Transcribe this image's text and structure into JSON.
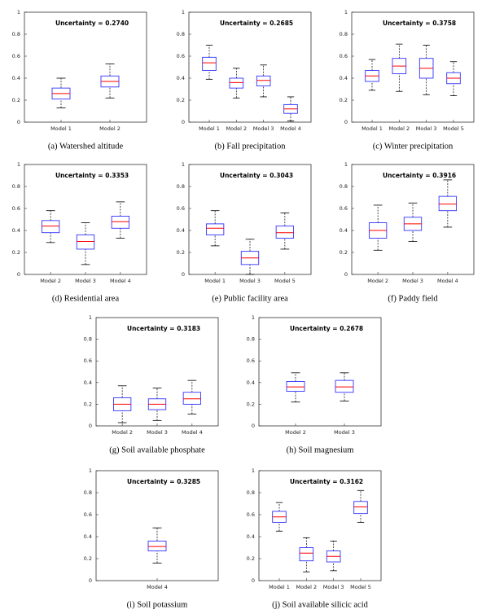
{
  "chart_data": [
    {
      "type": "box",
      "annotation": "Uncertainty = 0.2740",
      "caption": "(a) Watershed altitude",
      "categories": [
        "Model 1",
        "Model 2"
      ],
      "box_color": "#3333ff",
      "median_color": "#ff0000",
      "ylim": [
        0,
        1
      ],
      "yticks": [
        0,
        0.2,
        0.4,
        0.6,
        0.8,
        1
      ],
      "boxes": [
        {
          "low": 0.13,
          "q1": 0.21,
          "median": 0.26,
          "q3": 0.31,
          "high": 0.4
        },
        {
          "low": 0.22,
          "q1": 0.32,
          "median": 0.37,
          "q3": 0.42,
          "high": 0.53
        }
      ]
    },
    {
      "type": "box",
      "annotation": "Uncertainty = 0.2685",
      "caption": "(b) Fall precipitation",
      "categories": [
        "Model 1",
        "Model 2",
        "Model 3",
        "Model 4"
      ],
      "box_color": "#3333ff",
      "median_color": "#ff0000",
      "ylim": [
        0,
        1
      ],
      "yticks": [
        0,
        0.2,
        0.4,
        0.6,
        0.8,
        1
      ],
      "boxes": [
        {
          "low": 0.39,
          "q1": 0.47,
          "median": 0.54,
          "q3": 0.59,
          "high": 0.7
        },
        {
          "low": 0.22,
          "q1": 0.31,
          "median": 0.36,
          "q3": 0.4,
          "high": 0.49
        },
        {
          "low": 0.23,
          "q1": 0.33,
          "median": 0.38,
          "q3": 0.42,
          "high": 0.52
        },
        {
          "low": 0.01,
          "q1": 0.08,
          "median": 0.12,
          "q3": 0.16,
          "high": 0.23
        }
      ]
    },
    {
      "type": "box",
      "annotation": "Uncertainty = 0.3758",
      "caption": "(c) Winter precipitation",
      "categories": [
        "Model 1",
        "Model 2",
        "Model 3",
        "Model 5"
      ],
      "box_color": "#3333ff",
      "median_color": "#ff0000",
      "ylim": [
        0,
        1
      ],
      "yticks": [
        0,
        0.2,
        0.4,
        0.6,
        0.8,
        1
      ],
      "boxes": [
        {
          "low": 0.29,
          "q1": 0.37,
          "median": 0.42,
          "q3": 0.47,
          "high": 0.57
        },
        {
          "low": 0.28,
          "q1": 0.44,
          "median": 0.51,
          "q3": 0.58,
          "high": 0.71
        },
        {
          "low": 0.25,
          "q1": 0.4,
          "median": 0.49,
          "q3": 0.58,
          "high": 0.7
        },
        {
          "low": 0.24,
          "q1": 0.35,
          "median": 0.4,
          "q3": 0.45,
          "high": 0.55
        }
      ]
    },
    {
      "type": "box",
      "annotation": "Uncertainty = 0.3353",
      "caption": "(d) Residential area",
      "categories": [
        "Model 2",
        "Model 3",
        "Model 4"
      ],
      "box_color": "#3333ff",
      "median_color": "#ff0000",
      "ylim": [
        0,
        1
      ],
      "yticks": [
        0,
        0.2,
        0.4,
        0.6,
        0.8,
        1
      ],
      "boxes": [
        {
          "low": 0.29,
          "q1": 0.38,
          "median": 0.44,
          "q3": 0.49,
          "high": 0.58
        },
        {
          "low": 0.09,
          "q1": 0.23,
          "median": 0.3,
          "q3": 0.36,
          "high": 0.47
        },
        {
          "low": 0.33,
          "q1": 0.42,
          "median": 0.48,
          "q3": 0.53,
          "high": 0.66
        }
      ]
    },
    {
      "type": "box",
      "annotation": "Uncertainty = 0.3043",
      "caption": "(e) Public facility area",
      "categories": [
        "Model 1",
        "Model 3",
        "Model 5"
      ],
      "box_color": "#3333ff",
      "median_color": "#ff0000",
      "ylim": [
        0,
        1
      ],
      "yticks": [
        0,
        0.2,
        0.4,
        0.6,
        0.8,
        1
      ],
      "boxes": [
        {
          "low": 0.26,
          "q1": 0.36,
          "median": 0.42,
          "q3": 0.46,
          "high": 0.58
        },
        {
          "low": 0.0,
          "q1": 0.09,
          "median": 0.15,
          "q3": 0.21,
          "high": 0.32
        },
        {
          "low": 0.23,
          "q1": 0.33,
          "median": 0.38,
          "q3": 0.44,
          "high": 0.56
        }
      ]
    },
    {
      "type": "box",
      "annotation": "Uncertainty = 0.3916",
      "caption": "(f) Paddy field",
      "categories": [
        "Model 2",
        "Model 3",
        "Model 4"
      ],
      "box_color": "#3333ff",
      "median_color": "#ff0000",
      "ylim": [
        0,
        1
      ],
      "yticks": [
        0,
        0.2,
        0.4,
        0.6,
        0.8,
        1
      ],
      "boxes": [
        {
          "low": 0.22,
          "q1": 0.33,
          "median": 0.4,
          "q3": 0.47,
          "high": 0.63
        },
        {
          "low": 0.3,
          "q1": 0.4,
          "median": 0.46,
          "q3": 0.52,
          "high": 0.65
        },
        {
          "low": 0.43,
          "q1": 0.58,
          "median": 0.64,
          "q3": 0.71,
          "high": 0.86
        }
      ]
    },
    {
      "type": "box",
      "annotation": "Uncertainty = 0.3183",
      "caption": "(g) Soil available phosphate",
      "categories": [
        "Model 2",
        "Model 3",
        "Model 4"
      ],
      "box_color": "#3333ff",
      "median_color": "#ff0000",
      "ylim": [
        0,
        1
      ],
      "yticks": [
        0,
        0.2,
        0.4,
        0.6,
        0.8,
        1
      ],
      "boxes": [
        {
          "low": 0.03,
          "q1": 0.14,
          "median": 0.2,
          "q3": 0.26,
          "high": 0.37
        },
        {
          "low": 0.05,
          "q1": 0.15,
          "median": 0.2,
          "q3": 0.25,
          "high": 0.35
        },
        {
          "low": 0.11,
          "q1": 0.2,
          "median": 0.25,
          "q3": 0.31,
          "high": 0.42
        }
      ]
    },
    {
      "type": "box",
      "annotation": "Uncertainty = 0.2678",
      "caption": "(h) Soil magnesium",
      "categories": [
        "Model 2",
        "Model 3"
      ],
      "box_color": "#3333ff",
      "median_color": "#ff0000",
      "ylim": [
        0,
        1
      ],
      "yticks": [
        0,
        0.2,
        0.4,
        0.6,
        0.8,
        1
      ],
      "boxes": [
        {
          "low": 0.22,
          "q1": 0.32,
          "median": 0.36,
          "q3": 0.41,
          "high": 0.49
        },
        {
          "low": 0.23,
          "q1": 0.31,
          "median": 0.36,
          "q3": 0.42,
          "high": 0.49
        }
      ]
    },
    {
      "type": "box",
      "annotation": "Uncertainty = 0.3285",
      "caption": "(i) Soil potassium",
      "categories": [
        "Model 4"
      ],
      "box_color": "#3333ff",
      "median_color": "#ff0000",
      "ylim": [
        0,
        1
      ],
      "yticks": [
        0,
        0.2,
        0.4,
        0.6,
        0.8,
        1
      ],
      "boxes": [
        {
          "low": 0.16,
          "q1": 0.27,
          "median": 0.31,
          "q3": 0.36,
          "high": 0.48
        }
      ]
    },
    {
      "type": "box",
      "annotation": "Uncertainty = 0.3162",
      "caption": "(j) Soil available silicic acid",
      "categories": [
        "Model 1",
        "Model 2",
        "Model 3",
        "Model 5"
      ],
      "box_color": "#3333ff",
      "median_color": "#ff0000",
      "ylim": [
        0,
        1
      ],
      "yticks": [
        0,
        0.2,
        0.4,
        0.6,
        0.8,
        1
      ],
      "boxes": [
        {
          "low": 0.45,
          "q1": 0.53,
          "median": 0.58,
          "q3": 0.63,
          "high": 0.71
        },
        {
          "low": 0.08,
          "q1": 0.18,
          "median": 0.25,
          "q3": 0.3,
          "high": 0.39
        },
        {
          "low": 0.09,
          "q1": 0.17,
          "median": 0.22,
          "q3": 0.27,
          "high": 0.36
        },
        {
          "low": 0.53,
          "q1": 0.61,
          "median": 0.67,
          "q3": 0.72,
          "high": 0.82
        }
      ]
    }
  ]
}
